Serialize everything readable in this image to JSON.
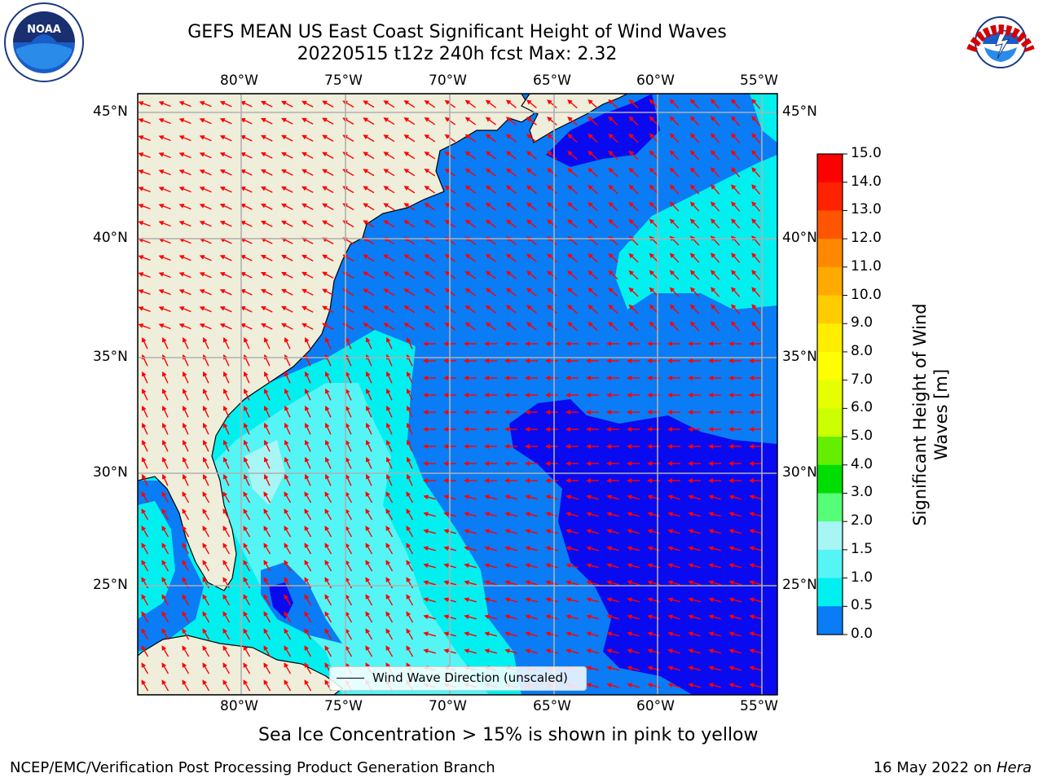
{
  "header": {
    "title_line1": "GEFS MEAN US East Coast Significant Height of Wind Waves",
    "title_line2": "20220515 t12z 240h fcst   Max: 2.32"
  },
  "logos": {
    "left": {
      "name": "noaa-logo",
      "text": "NOAA"
    },
    "right": {
      "name": "nws-logo",
      "text": "NATIONAL WEATHER SERVICE"
    }
  },
  "map": {
    "lon_labels": [
      "80°W",
      "75°W",
      "70°W",
      "65°W",
      "60°W",
      "55°W"
    ],
    "lat_labels": [
      "45°N",
      "40°N",
      "35°N",
      "30°N",
      "25°N"
    ],
    "legend_label": "Wind Wave Direction (unscaled)",
    "colors": {
      "land": "#efeedb",
      "wave_0_0_5": "#0a0af0",
      "wave_0_5_1_0": "#0a7cf5",
      "wave_1_0_1_5": "#00f0f0",
      "wave_1_5_2_0": "#55f5f5",
      "wave_2_0_3_0": "#a8f5f5",
      "arrows": "#ff0000"
    }
  },
  "colorbar": {
    "title": "Significant Height of Wind Waves [m]",
    "ticks": [
      "15.0",
      "14.0",
      "13.0",
      "12.0",
      "11.0",
      "10.0",
      "9.0",
      "8.0",
      "7.0",
      "6.0",
      "5.0",
      "4.0",
      "3.0",
      "2.0",
      "1.5",
      "1.0",
      "0.5",
      "0.0"
    ],
    "colors": [
      "#ff0000",
      "#ff2200",
      "#ff5500",
      "#ff8800",
      "#ffaa00",
      "#ffcc00",
      "#ffee00",
      "#ffff00",
      "#e6ff00",
      "#ccff00",
      "#66ee00",
      "#00dd00",
      "#55ff77",
      "#a8f5f5",
      "#55f5f5",
      "#00f0f0",
      "#0a7cf5",
      "#0a0af0"
    ]
  },
  "footer": {
    "subtitle": "Sea Ice Concentration > 15% is shown in pink to yellow",
    "left": "NCEP/EMC/Verification Post Processing Product Generation Branch",
    "right_prefix": "16 May 2022 on ",
    "right_host": "Hera"
  }
}
